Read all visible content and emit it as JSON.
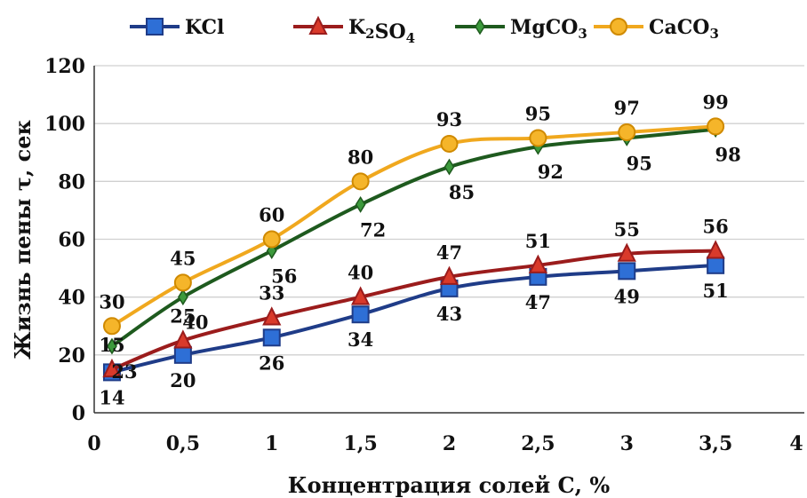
{
  "chart_data": {
    "type": "line",
    "xlabel": "Концентрация солей С, %",
    "ylabel": "Жизнь пены τ, сек",
    "xlim": [
      0,
      4
    ],
    "ylim": [
      0,
      120
    ],
    "xticks": [
      0,
      0.5,
      1,
      1.5,
      2,
      2.5,
      3,
      3.5,
      4
    ],
    "xtick_labels": [
      "0",
      "0,5",
      "1",
      "1,5",
      "2",
      "2,5",
      "3",
      "3,5",
      "4"
    ],
    "yticks": [
      0,
      20,
      40,
      60,
      80,
      100,
      120
    ],
    "ytick_labels": [
      "0",
      "20",
      "40",
      "60",
      "80",
      "100",
      "120"
    ],
    "grid": "horizontal",
    "legend_position": "top",
    "x": [
      0.1,
      0.5,
      1,
      1.5,
      2,
      2.5,
      3,
      3.5
    ],
    "series": [
      {
        "id": "kcl",
        "name": "KCl",
        "name_parts": [
          [
            "KCl",
            ""
          ]
        ],
        "color": "#1f3c88",
        "marker": "square",
        "values": [
          14,
          20,
          26,
          34,
          43,
          47,
          49,
          51
        ],
        "label_position": "below"
      },
      {
        "id": "k2so4",
        "name": "K2SO4",
        "name_parts": [
          [
            "K",
            ""
          ],
          [
            "2",
            "sub"
          ],
          [
            "SO",
            ""
          ],
          [
            "4",
            "sub"
          ]
        ],
        "color": "#9b1c1c",
        "marker": "triangle",
        "values": [
          15,
          25,
          33,
          40,
          47,
          51,
          55,
          56
        ],
        "label_position": "above"
      },
      {
        "id": "mgco3",
        "name": "MgCO3",
        "name_parts": [
          [
            "MgCO",
            ""
          ],
          [
            "3",
            "sub"
          ]
        ],
        "color": "#1e5a1e",
        "marker": "diamond",
        "values": [
          23,
          40,
          56,
          72,
          85,
          92,
          95,
          98
        ],
        "label_position": "below"
      },
      {
        "id": "caco3",
        "name": "CaCO3",
        "name_parts": [
          [
            "CaCO",
            ""
          ],
          [
            "3",
            "sub"
          ]
        ],
        "color": "#f0a81e",
        "marker": "circle",
        "values": [
          30,
          45,
          60,
          80,
          93,
          95,
          97,
          99
        ],
        "label_position": "above"
      }
    ]
  }
}
